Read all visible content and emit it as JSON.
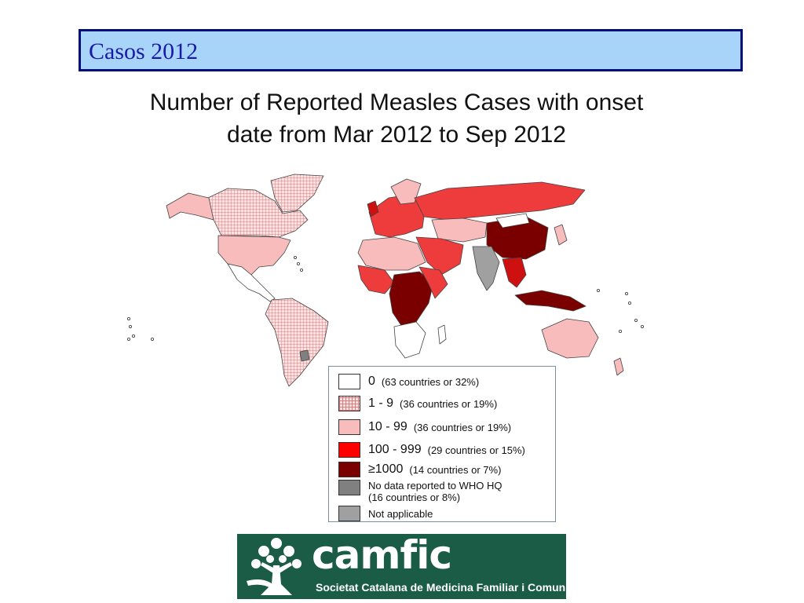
{
  "slide": {
    "heading": "Casos 2012"
  },
  "map": {
    "title_line1": "Number of Reported Measles Cases with onset",
    "title_line2": "date from Mar 2012 to Sep 2012"
  },
  "legend": {
    "items": [
      {
        "range": "0",
        "count": "(63 countries or 32%)",
        "color": "#ffffff",
        "pattern": false
      },
      {
        "range": "1 - 9",
        "count": "(36 countries or 19%)",
        "color": "#f6c4c4",
        "pattern": true
      },
      {
        "range": "10 - 99",
        "count": "(36 countries or 19%)",
        "color": "#f8bcbc",
        "pattern": false
      },
      {
        "range": "100 - 999",
        "count": "(29 countries or 15%)",
        "color": "#ff0000",
        "pattern": false
      },
      {
        "range": "≥1000",
        "count": "(14 countries or 7%)",
        "color": "#7a0000",
        "pattern": false
      }
    ],
    "no_data_line1": "No data reported to WHO HQ",
    "no_data_line2": "(16 countries or 8%)",
    "no_data_color": "#808080",
    "not_applicable": "Not applicable",
    "not_applicable_color": "#a0a0a0"
  },
  "logo": {
    "name": "camfic",
    "subtitle": "Societat Catalana de Medicina Familiar i Comunitària",
    "background": "#1a5c45"
  }
}
